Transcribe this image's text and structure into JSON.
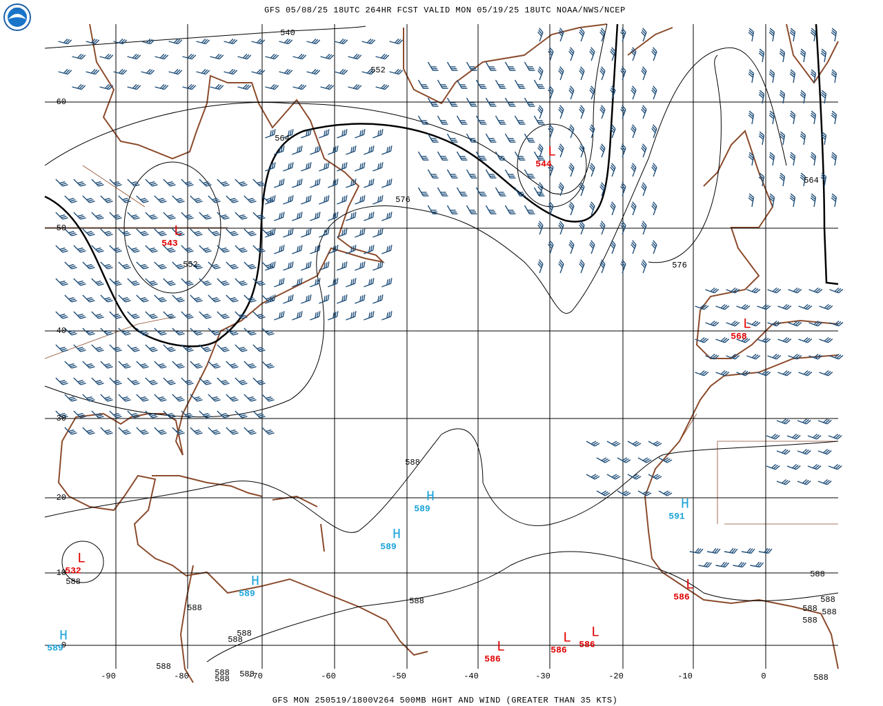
{
  "header": {
    "title": "GFS 05/08/25 18UTC 264HR FCST VALID MON 05/19/25 18UTC NOAA/NWS/NCEP",
    "logo": "NOAA"
  },
  "footer": "GFS MON 250519/1800V264 500MB HGHT AND WIND (GREATER THAN 35 KTS)",
  "map": {
    "longitudes": [
      -90,
      -80,
      -70,
      -60,
      -50,
      -40,
      -30,
      -20,
      -10,
      0
    ],
    "latitudes": [
      60,
      50,
      40,
      30,
      20,
      10,
      0
    ],
    "contour_labels": [
      "540",
      "552",
      "564",
      "576",
      "552",
      "564",
      "576",
      "588",
      "588",
      "588",
      "588",
      "588",
      "588",
      "588",
      "588",
      "588",
      "588",
      "588",
      "588",
      "588",
      "588",
      "588",
      "588"
    ],
    "centers": [
      {
        "type": "L",
        "value": "543"
      },
      {
        "type": "L",
        "value": "544"
      },
      {
        "type": "L",
        "value": "568"
      },
      {
        "type": "L",
        "value": "532"
      },
      {
        "type": "H",
        "value": "589"
      },
      {
        "type": "H",
        "value": "589"
      },
      {
        "type": "H",
        "value": "589"
      },
      {
        "type": "H",
        "value": "589"
      },
      {
        "type": "H",
        "value": "591"
      },
      {
        "type": "L",
        "value": "586"
      },
      {
        "type": "L",
        "value": "586"
      },
      {
        "type": "L",
        "value": "586"
      },
      {
        "type": "L",
        "value": "586"
      }
    ]
  }
}
